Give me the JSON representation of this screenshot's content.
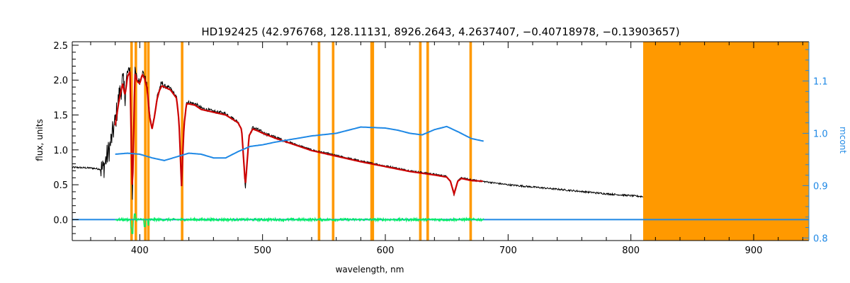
{
  "chart_data": {
    "type": "line",
    "title": "HD192425    (42.976768, 128.11131, 8926.2643, 4.2637407, −0.40718978, −0.13903657)",
    "xlabel": "wavelength, nm",
    "ylabel": "flux, units",
    "y2label": "mcont",
    "xlim": [
      345,
      945
    ],
    "ylim": [
      -0.3,
      2.55
    ],
    "y2lim": [
      0.795,
      1.175
    ],
    "x_ticks": [
      400,
      500,
      600,
      700,
      800,
      900
    ],
    "y_ticks": [
      0.0,
      0.5,
      1.0,
      1.5,
      2.0,
      2.5
    ],
    "y_tick_labels": [
      "0.0",
      "0.5",
      "1.0",
      "1.5",
      "2.0",
      "2.5"
    ],
    "y2_ticks": [
      0.8,
      0.9,
      1.0,
      1.1
    ],
    "y2_tick_labels": [
      "0.8",
      "0.9",
      "1.0",
      "1.1"
    ],
    "grid": false,
    "legend": "none",
    "colors": {
      "observed": "#000000",
      "model": "#cc0000",
      "residual": "#00ee66",
      "mcont": "#1e88e5",
      "masked": "#ff9900",
      "zero_line": "#1e88e5",
      "right_axis": "#1e88e5"
    },
    "masked_lines_nm": [
      393.3,
      396.8,
      404.5,
      407.0,
      434.5,
      546.0,
      557.5,
      588.8,
      589.8,
      628.5,
      634.5,
      669.5
    ],
    "masked_band_nm": [
      810,
      945
    ],
    "series": [
      {
        "kind": "observed",
        "x": [
          345,
          360,
          370,
          375,
          380,
          383,
          386,
          388,
          390,
          392,
          394,
          396,
          398,
          400,
          402,
          404,
          406,
          408,
          410,
          412,
          414,
          416,
          418,
          420,
          425,
          430,
          432,
          434,
          436,
          438,
          440,
          445,
          450,
          460,
          470,
          480,
          483,
          486,
          489,
          492,
          495,
          500,
          510,
          520,
          540,
          560,
          580,
          600,
          620,
          640,
          650,
          653,
          656,
          659,
          662,
          670,
          700,
          750,
          780,
          810
        ],
        "y": [
          0.75,
          0.74,
          0.72,
          1.0,
          1.4,
          1.75,
          1.98,
          1.8,
          2.1,
          2.18,
          0.3,
          2.15,
          2.0,
          1.98,
          2.12,
          2.06,
          1.9,
          1.5,
          1.3,
          1.5,
          1.75,
          1.88,
          1.95,
          1.92,
          1.88,
          1.75,
          1.4,
          0.45,
          1.35,
          1.68,
          1.68,
          1.66,
          1.6,
          1.55,
          1.52,
          1.4,
          1.3,
          0.45,
          1.2,
          1.32,
          1.3,
          1.25,
          1.18,
          1.12,
          1.0,
          0.92,
          0.84,
          0.77,
          0.7,
          0.65,
          0.62,
          0.55,
          0.35,
          0.55,
          0.6,
          0.57,
          0.5,
          0.42,
          0.37,
          0.33
        ]
      },
      {
        "kind": "model",
        "x": [
          380,
          383,
          386,
          388,
          390,
          392,
          394,
          396,
          398,
          400,
          402,
          404,
          406,
          408,
          410,
          412,
          414,
          416,
          418,
          420,
          425,
          430,
          432,
          434,
          436,
          438,
          440,
          445,
          450,
          460,
          470,
          480,
          483,
          486,
          489,
          492,
          495,
          500,
          510,
          520,
          540,
          560,
          580,
          600,
          620,
          640,
          650,
          653,
          656,
          659,
          662,
          670,
          680
        ],
        "y": [
          1.35,
          1.7,
          1.95,
          1.78,
          2.05,
          2.12,
          0.32,
          2.1,
          1.98,
          1.95,
          2.08,
          2.02,
          1.88,
          1.48,
          1.3,
          1.48,
          1.72,
          1.85,
          1.92,
          1.9,
          1.86,
          1.74,
          1.4,
          0.48,
          1.34,
          1.66,
          1.66,
          1.64,
          1.58,
          1.54,
          1.5,
          1.39,
          1.29,
          0.48,
          1.2,
          1.3,
          1.28,
          1.24,
          1.17,
          1.11,
          0.99,
          0.91,
          0.83,
          0.76,
          0.69,
          0.64,
          0.61,
          0.55,
          0.37,
          0.55,
          0.59,
          0.56,
          0.55
        ]
      },
      {
        "kind": "mcont",
        "axis": "right",
        "x": [
          380,
          390,
          400,
          410,
          420,
          430,
          440,
          450,
          460,
          470,
          480,
          490,
          500,
          510,
          520,
          540,
          560,
          580,
          600,
          610,
          620,
          630,
          640,
          650,
          660,
          670,
          680
        ],
        "y": [
          0.96,
          0.962,
          0.96,
          0.953,
          0.948,
          0.955,
          0.962,
          0.96,
          0.953,
          0.953,
          0.965,
          0.975,
          0.978,
          0.983,
          0.987,
          0.995,
          1.0,
          1.012,
          1.01,
          1.006,
          1.0,
          0.997,
          1.007,
          1.013,
          1.002,
          0.99,
          0.985
        ]
      },
      {
        "kind": "residual",
        "x_range": [
          380,
          680
        ],
        "noise": 0.018,
        "spikes": [
          [
            393,
            -0.12
          ],
          [
            394,
            -0.2
          ],
          [
            396,
            0.08
          ],
          [
            404,
            -0.1
          ],
          [
            407,
            -0.08
          ]
        ]
      },
      {
        "kind": "zero_line",
        "x_range": [
          345,
          945
        ],
        "y": 0.0
      }
    ]
  }
}
